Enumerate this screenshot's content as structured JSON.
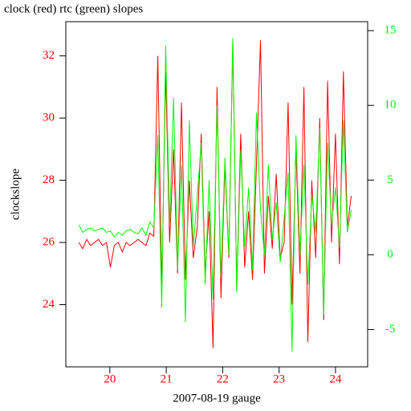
{
  "chart_data": {
    "type": "line",
    "title": "clock (red) rtc (green) slopes",
    "ylabel": "clockslope",
    "xlabel": "2007-08-19 gauge",
    "x": [
      19.45,
      19.52,
      19.59,
      19.66,
      19.73,
      19.8,
      19.87,
      19.94,
      20.01,
      20.08,
      20.15,
      20.22,
      20.29,
      20.36,
      20.43,
      20.5,
      20.57,
      20.64,
      20.71,
      20.78,
      20.85,
      20.92,
      20.99,
      21.06,
      21.13,
      21.2,
      21.27,
      21.34,
      21.41,
      21.48,
      21.55,
      21.62,
      21.69,
      21.76,
      21.83,
      21.9,
      21.97,
      22.04,
      22.11,
      22.18,
      22.25,
      22.32,
      22.39,
      22.46,
      22.53,
      22.6,
      22.67,
      22.74,
      22.81,
      22.88,
      22.95,
      23.02,
      23.09,
      23.16,
      23.23,
      23.3,
      23.37,
      23.44,
      23.51,
      23.58,
      23.65,
      23.72,
      23.79,
      23.86,
      23.93,
      24.0,
      24.07,
      24.14,
      24.21,
      24.28
    ],
    "series": [
      {
        "color": "#ff0000",
        "values": [
          26.0,
          25.8,
          26.1,
          25.9,
          26.0,
          26.1,
          25.9,
          26.0,
          25.2,
          25.9,
          26.0,
          25.7,
          26.0,
          25.9,
          26.0,
          26.1,
          26.0,
          25.9,
          26.3,
          26.2,
          32.0,
          24.5,
          31.5,
          26.0,
          29.0,
          25.0,
          30.5,
          24.8,
          28.0,
          25.5,
          26.5,
          29.5,
          25.0,
          27.0,
          22.6,
          31.0,
          24.2,
          28.5,
          25.5,
          32.5,
          24.5,
          29.5,
          25.2,
          27.0,
          24.8,
          28.5,
          32.5,
          25.0,
          27.5,
          25.8,
          28.2,
          25.5,
          26.0,
          30.5,
          24.0,
          29.0,
          25.0,
          31.0,
          22.8,
          28.0,
          25.5,
          30.0,
          23.5,
          31.2,
          26.0,
          29.5,
          25.3,
          31.5,
          26.5,
          27.5
        ]
      },
      {
        "color": "#00ff00",
        "axis": "y2",
        "values": [
          2.0,
          1.5,
          1.7,
          1.8,
          1.6,
          1.7,
          1.8,
          1.5,
          1.6,
          1.2,
          1.5,
          1.3,
          1.6,
          1.7,
          1.5,
          1.4,
          1.8,
          1.3,
          2.2,
          1.8,
          8.0,
          -3.5,
          14.0,
          2.0,
          10.5,
          -1.0,
          6.0,
          -4.5,
          9.0,
          0.5,
          4.0,
          7.5,
          -2.0,
          5.0,
          -3.0,
          10.0,
          -1.5,
          6.5,
          0.0,
          14.5,
          -2.5,
          7.0,
          0.5,
          4.5,
          -1.0,
          9.5,
          3.0,
          0.0,
          6.0,
          1.0,
          3.5,
          -0.5,
          2.5,
          5.5,
          -6.5,
          8.0,
          0.0,
          6.0,
          -2.0,
          4.0,
          1.5,
          8.5,
          -4.0,
          7.5,
          2.0,
          4.5,
          0.5,
          9.0,
          1.5,
          3.0
        ]
      }
    ],
    "xlim": [
      19.22,
      24.57
    ],
    "xticks": [
      20,
      21,
      22,
      23,
      24
    ],
    "ylim": [
      22.0,
      33.1
    ],
    "yticks": [
      24,
      26,
      28,
      30,
      32
    ],
    "ycolor": "#ff0000",
    "y2lim": [
      -7.5,
      15.6
    ],
    "y2ticks": [
      -5,
      0,
      5,
      10,
      15
    ],
    "y2color": "#00ff00",
    "xcolor": "#ff0000"
  }
}
